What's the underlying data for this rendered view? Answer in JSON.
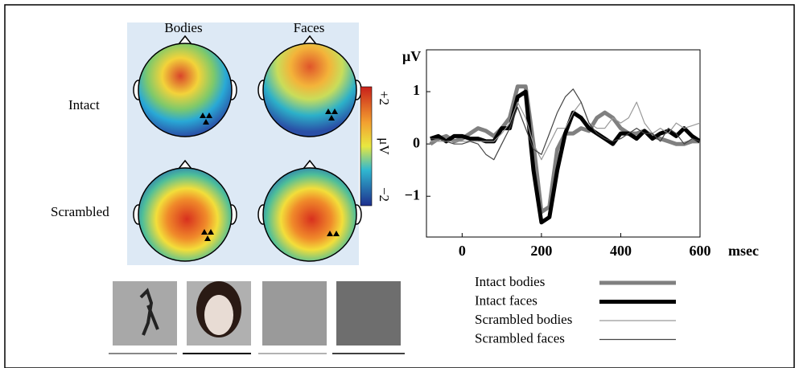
{
  "topomaps": {
    "columns": [
      "Bodies",
      "Faces"
    ],
    "rows": [
      "Intact",
      "Scrambled"
    ],
    "colorbar": {
      "max_label": "+2",
      "unit": "μV",
      "min_label": "−2"
    }
  },
  "chart_data": {
    "type": "line",
    "y_label": "μV",
    "x_label": "msec",
    "x": [
      -80,
      -60,
      -40,
      -20,
      0,
      20,
      40,
      60,
      80,
      100,
      120,
      140,
      160,
      180,
      200,
      220,
      240,
      260,
      280,
      300,
      320,
      340,
      360,
      380,
      400,
      420,
      440,
      460,
      480,
      500,
      520,
      540,
      560,
      580,
      600
    ],
    "xlim": [
      -90,
      600
    ],
    "xticks": [
      0,
      200,
      400,
      600
    ],
    "ylim": [
      -1.78,
      1.8
    ],
    "yticks": [
      {
        "value": -1,
        "label": "−1"
      },
      0,
      1
    ],
    "series": [
      {
        "name": "Intact bodies",
        "color": "#808080",
        "line_width": 5,
        "values": [
          0.0,
          0.1,
          0.15,
          0.05,
          0.1,
          0.2,
          0.3,
          0.25,
          0.15,
          0.3,
          0.5,
          1.1,
          1.1,
          0.0,
          -1.3,
          -1.2,
          -0.1,
          0.2,
          0.2,
          0.3,
          0.25,
          0.5,
          0.6,
          0.5,
          0.3,
          0.2,
          0.2,
          0.25,
          0.15,
          0.1,
          0.05,
          0.0,
          0.0,
          0.05,
          0.05
        ]
      },
      {
        "name": "Intact faces",
        "color": "#000000",
        "line_width": 5,
        "values": [
          0.1,
          0.15,
          0.05,
          0.15,
          0.15,
          0.1,
          0.1,
          0.05,
          0.05,
          0.3,
          0.3,
          0.9,
          1.0,
          -0.5,
          -1.5,
          -1.4,
          -0.5,
          0.2,
          0.6,
          0.5,
          0.3,
          0.2,
          0.1,
          0.0,
          0.2,
          0.2,
          0.1,
          0.25,
          0.1,
          0.2,
          0.25,
          0.15,
          0.3,
          0.15,
          0.05
        ]
      },
      {
        "name": "Scrambled bodies",
        "color": "#999999",
        "line_width": 1.2,
        "values": [
          0.05,
          0.05,
          0.05,
          0.05,
          0.05,
          0.05,
          0.05,
          0.05,
          0.05,
          0.2,
          0.4,
          0.8,
          0.5,
          0.0,
          -0.3,
          0.0,
          0.3,
          0.3,
          0.6,
          0.8,
          0.4,
          0.3,
          0.3,
          0.5,
          0.4,
          0.5,
          0.8,
          0.4,
          0.2,
          0.3,
          0.2,
          0.4,
          0.3,
          0.35,
          0.4
        ]
      },
      {
        "name": "Scrambled faces",
        "color": "#444444",
        "line_width": 1.2,
        "values": [
          0.1,
          0.1,
          0.05,
          0.0,
          0.0,
          0.05,
          0.0,
          -0.2,
          -0.3,
          0.0,
          0.3,
          0.7,
          0.3,
          -0.1,
          -0.2,
          0.2,
          0.6,
          0.9,
          1.05,
          0.8,
          0.4,
          0.2,
          0.1,
          0.05,
          0.1,
          0.2,
          0.3,
          0.2,
          0.2,
          0.05,
          0.3,
          0.2,
          0.0,
          0.1,
          0.05
        ]
      }
    ]
  }
}
